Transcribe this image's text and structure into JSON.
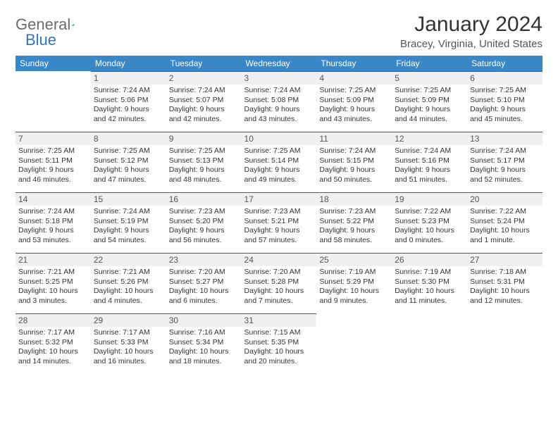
{
  "brand": {
    "part1": "General",
    "part2": "Blue"
  },
  "title": "January 2024",
  "location": "Bracey, Virginia, United States",
  "weekday_headers": [
    "Sunday",
    "Monday",
    "Tuesday",
    "Wednesday",
    "Thursday",
    "Friday",
    "Saturday"
  ],
  "colors": {
    "header_bg": "#3a87c8",
    "header_text": "#ffffff",
    "daybar_bg": "#eef0f2",
    "daybar_border": "#2f5f8a",
    "brand_gray": "#6b6b6b",
    "brand_blue": "#2f77bb"
  },
  "weeks": [
    [
      {
        "day": ""
      },
      {
        "day": "1",
        "sunrise": "Sunrise: 7:24 AM",
        "sunset": "Sunset: 5:06 PM",
        "dl1": "Daylight: 9 hours",
        "dl2": "and 42 minutes."
      },
      {
        "day": "2",
        "sunrise": "Sunrise: 7:24 AM",
        "sunset": "Sunset: 5:07 PM",
        "dl1": "Daylight: 9 hours",
        "dl2": "and 42 minutes."
      },
      {
        "day": "3",
        "sunrise": "Sunrise: 7:24 AM",
        "sunset": "Sunset: 5:08 PM",
        "dl1": "Daylight: 9 hours",
        "dl2": "and 43 minutes."
      },
      {
        "day": "4",
        "sunrise": "Sunrise: 7:25 AM",
        "sunset": "Sunset: 5:09 PM",
        "dl1": "Daylight: 9 hours",
        "dl2": "and 43 minutes."
      },
      {
        "day": "5",
        "sunrise": "Sunrise: 7:25 AM",
        "sunset": "Sunset: 5:09 PM",
        "dl1": "Daylight: 9 hours",
        "dl2": "and 44 minutes."
      },
      {
        "day": "6",
        "sunrise": "Sunrise: 7:25 AM",
        "sunset": "Sunset: 5:10 PM",
        "dl1": "Daylight: 9 hours",
        "dl2": "and 45 minutes."
      }
    ],
    [
      {
        "day": "7",
        "sunrise": "Sunrise: 7:25 AM",
        "sunset": "Sunset: 5:11 PM",
        "dl1": "Daylight: 9 hours",
        "dl2": "and 46 minutes."
      },
      {
        "day": "8",
        "sunrise": "Sunrise: 7:25 AM",
        "sunset": "Sunset: 5:12 PM",
        "dl1": "Daylight: 9 hours",
        "dl2": "and 47 minutes."
      },
      {
        "day": "9",
        "sunrise": "Sunrise: 7:25 AM",
        "sunset": "Sunset: 5:13 PM",
        "dl1": "Daylight: 9 hours",
        "dl2": "and 48 minutes."
      },
      {
        "day": "10",
        "sunrise": "Sunrise: 7:25 AM",
        "sunset": "Sunset: 5:14 PM",
        "dl1": "Daylight: 9 hours",
        "dl2": "and 49 minutes."
      },
      {
        "day": "11",
        "sunrise": "Sunrise: 7:24 AM",
        "sunset": "Sunset: 5:15 PM",
        "dl1": "Daylight: 9 hours",
        "dl2": "and 50 minutes."
      },
      {
        "day": "12",
        "sunrise": "Sunrise: 7:24 AM",
        "sunset": "Sunset: 5:16 PM",
        "dl1": "Daylight: 9 hours",
        "dl2": "and 51 minutes."
      },
      {
        "day": "13",
        "sunrise": "Sunrise: 7:24 AM",
        "sunset": "Sunset: 5:17 PM",
        "dl1": "Daylight: 9 hours",
        "dl2": "and 52 minutes."
      }
    ],
    [
      {
        "day": "14",
        "sunrise": "Sunrise: 7:24 AM",
        "sunset": "Sunset: 5:18 PM",
        "dl1": "Daylight: 9 hours",
        "dl2": "and 53 minutes."
      },
      {
        "day": "15",
        "sunrise": "Sunrise: 7:24 AM",
        "sunset": "Sunset: 5:19 PM",
        "dl1": "Daylight: 9 hours",
        "dl2": "and 54 minutes."
      },
      {
        "day": "16",
        "sunrise": "Sunrise: 7:23 AM",
        "sunset": "Sunset: 5:20 PM",
        "dl1": "Daylight: 9 hours",
        "dl2": "and 56 minutes."
      },
      {
        "day": "17",
        "sunrise": "Sunrise: 7:23 AM",
        "sunset": "Sunset: 5:21 PM",
        "dl1": "Daylight: 9 hours",
        "dl2": "and 57 minutes."
      },
      {
        "day": "18",
        "sunrise": "Sunrise: 7:23 AM",
        "sunset": "Sunset: 5:22 PM",
        "dl1": "Daylight: 9 hours",
        "dl2": "and 58 minutes."
      },
      {
        "day": "19",
        "sunrise": "Sunrise: 7:22 AM",
        "sunset": "Sunset: 5:23 PM",
        "dl1": "Daylight: 10 hours",
        "dl2": "and 0 minutes."
      },
      {
        "day": "20",
        "sunrise": "Sunrise: 7:22 AM",
        "sunset": "Sunset: 5:24 PM",
        "dl1": "Daylight: 10 hours",
        "dl2": "and 1 minute."
      }
    ],
    [
      {
        "day": "21",
        "sunrise": "Sunrise: 7:21 AM",
        "sunset": "Sunset: 5:25 PM",
        "dl1": "Daylight: 10 hours",
        "dl2": "and 3 minutes."
      },
      {
        "day": "22",
        "sunrise": "Sunrise: 7:21 AM",
        "sunset": "Sunset: 5:26 PM",
        "dl1": "Daylight: 10 hours",
        "dl2": "and 4 minutes."
      },
      {
        "day": "23",
        "sunrise": "Sunrise: 7:20 AM",
        "sunset": "Sunset: 5:27 PM",
        "dl1": "Daylight: 10 hours",
        "dl2": "and 6 minutes."
      },
      {
        "day": "24",
        "sunrise": "Sunrise: 7:20 AM",
        "sunset": "Sunset: 5:28 PM",
        "dl1": "Daylight: 10 hours",
        "dl2": "and 7 minutes."
      },
      {
        "day": "25",
        "sunrise": "Sunrise: 7:19 AM",
        "sunset": "Sunset: 5:29 PM",
        "dl1": "Daylight: 10 hours",
        "dl2": "and 9 minutes."
      },
      {
        "day": "26",
        "sunrise": "Sunrise: 7:19 AM",
        "sunset": "Sunset: 5:30 PM",
        "dl1": "Daylight: 10 hours",
        "dl2": "and 11 minutes."
      },
      {
        "day": "27",
        "sunrise": "Sunrise: 7:18 AM",
        "sunset": "Sunset: 5:31 PM",
        "dl1": "Daylight: 10 hours",
        "dl2": "and 12 minutes."
      }
    ],
    [
      {
        "day": "28",
        "sunrise": "Sunrise: 7:17 AM",
        "sunset": "Sunset: 5:32 PM",
        "dl1": "Daylight: 10 hours",
        "dl2": "and 14 minutes."
      },
      {
        "day": "29",
        "sunrise": "Sunrise: 7:17 AM",
        "sunset": "Sunset: 5:33 PM",
        "dl1": "Daylight: 10 hours",
        "dl2": "and 16 minutes."
      },
      {
        "day": "30",
        "sunrise": "Sunrise: 7:16 AM",
        "sunset": "Sunset: 5:34 PM",
        "dl1": "Daylight: 10 hours",
        "dl2": "and 18 minutes."
      },
      {
        "day": "31",
        "sunrise": "Sunrise: 7:15 AM",
        "sunset": "Sunset: 5:35 PM",
        "dl1": "Daylight: 10 hours",
        "dl2": "and 20 minutes."
      },
      {
        "day": ""
      },
      {
        "day": ""
      },
      {
        "day": ""
      }
    ],
    [
      {
        "day": ""
      },
      {
        "day": ""
      },
      {
        "day": ""
      },
      {
        "day": ""
      },
      {
        "day": ""
      },
      {
        "day": ""
      },
      {
        "day": ""
      }
    ]
  ]
}
